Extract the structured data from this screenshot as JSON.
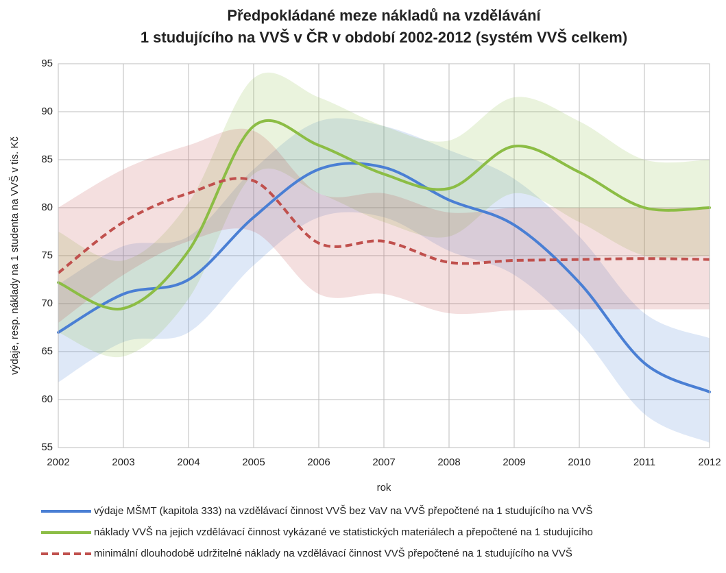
{
  "chart_data": {
    "type": "line",
    "title": [
      "Předpokládané meze nákladů na vzdělávání",
      "1 studujícího na VVŠ v ČR v období 2002-2012 (systém VVŠ celkem)"
    ],
    "xlabel": "rok",
    "ylabel": "výdaje, resp. náklady na 1 studenta na VVŠ v tis. Kč",
    "x": [
      2002,
      2003,
      2004,
      2005,
      2006,
      2007,
      2008,
      2009,
      2010,
      2011,
      2012
    ],
    "xlim": [
      2002,
      2012
    ],
    "xticks": [
      2002,
      2003,
      2004,
      2005,
      2006,
      2007,
      2008,
      2009,
      2010,
      2011,
      2012
    ],
    "ylim": [
      55,
      95
    ],
    "yticks": [
      55,
      60,
      65,
      70,
      75,
      80,
      85,
      90,
      95
    ],
    "grid": true,
    "smooth": true,
    "series": [
      {
        "name": "výdaje MŠMT (kapitola 333) na vzdělávací činnost VVŠ bez VaV na VVŠ přepočtené na 1 studujícího na VVŠ",
        "color": "#4a7fd4",
        "dash": false,
        "values": [
          67,
          71,
          72.5,
          79,
          84,
          84.2,
          80.8,
          78.2,
          72.2,
          63.8,
          60.8
        ]
      },
      {
        "name": "náklady VVŠ na jejich vzdělávací činnost vykázané ve statistických materiálech a přepočtené na 1 studujícího",
        "color": "#8cbd45",
        "dash": false,
        "values": [
          72.2,
          69.5,
          75.5,
          88.5,
          86.5,
          83.5,
          82,
          86.4,
          83.7,
          80,
          80
        ]
      },
      {
        "name": "minimální dlouhodobě udržitelné náklady na vzdělávací činnost VVŠ přepočtené na 1 studujícího na VVŠ",
        "color": "#c0504d",
        "dash": true,
        "values": [
          73.2,
          78.5,
          81.5,
          82.8,
          76.3,
          76.5,
          74.3,
          74.5,
          74.6,
          74.7,
          74.6
        ]
      }
    ],
    "bands": [
      {
        "color": "#4a7fd4",
        "upper": [
          72,
          76,
          77,
          84,
          89,
          88.5,
          86,
          83,
          77,
          69,
          66.4
        ],
        "lower": [
          61.8,
          66,
          67,
          74,
          79,
          79,
          75.5,
          73,
          67,
          58.5,
          55.5
        ]
      },
      {
        "color": "#8cbd45",
        "upper": [
          77.5,
          74.5,
          80.5,
          93.5,
          91.5,
          88.5,
          87,
          91.5,
          89,
          85,
          85
        ],
        "lower": [
          67,
          64.5,
          70.5,
          83.5,
          81.5,
          78.5,
          77,
          81.5,
          78.5,
          75,
          75
        ]
      },
      {
        "color": "#c0504d",
        "upper": [
          80,
          84,
          86.5,
          88,
          81.5,
          81.5,
          79.5,
          80,
          80,
          80,
          80
        ],
        "lower": [
          68,
          73,
          76.5,
          77.5,
          71,
          71,
          69,
          69.3,
          69.4,
          69.4,
          69.4
        ]
      }
    ]
  }
}
